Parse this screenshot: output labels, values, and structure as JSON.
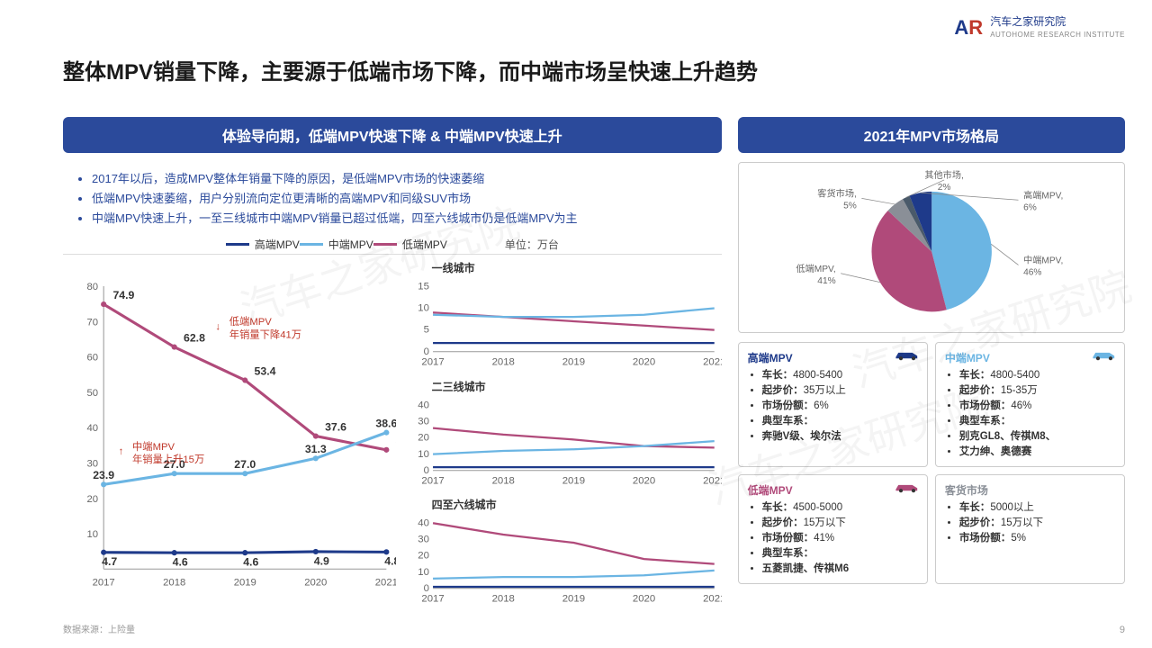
{
  "logo": {
    "mark_a": "A",
    "mark_r": "R",
    "cn": "汽车之家研究院",
    "en": "AUTOHOME RESEARCH INSTITUTE"
  },
  "main_title": "整体MPV销量下降，主要源于低端市场下降，而中端市场呈快速上升趋势",
  "left_banner": "体验导向期，低端MPV快速下降 & 中端MPV快速上升",
  "right_banner": "2021年MPV市场格局",
  "bullets": [
    "2017年以后，造成MPV整体年销量下降的原因，是低端MPV市场的快速萎缩",
    "低端MPV快速萎缩，用户分别流向定位更清晰的高端MPV和同级SUV市场",
    "中端MPV快速上升，一至三线城市中端MPV销量已超过低端，四至六线城市仍是低端MPV为主"
  ],
  "legend": [
    {
      "label": "高端MPV",
      "color": "#1e3a8a"
    },
    {
      "label": "中端MPV",
      "color": "#6bb5e3"
    },
    {
      "label": "低端MPV",
      "color": "#b04a7a"
    }
  ],
  "unit": "单位：万台",
  "main_chart": {
    "years": [
      "2017",
      "2018",
      "2019",
      "2020",
      "2021"
    ],
    "ylim": [
      0,
      80
    ],
    "ytick": 10,
    "series": {
      "high": {
        "color": "#1e3a8a",
        "values": [
          4.7,
          4.6,
          4.6,
          4.9,
          4.8
        ]
      },
      "mid": {
        "color": "#6bb5e3",
        "values": [
          23.9,
          27.0,
          27.0,
          31.3,
          38.6
        ]
      },
      "low": {
        "color": "#b04a7a",
        "values": [
          74.9,
          62.8,
          53.4,
          37.6,
          33.7
        ]
      }
    },
    "annot_low": "低端MPV\n年销量下降41万",
    "annot_mid": "中端MPV\n年销量上升15万"
  },
  "small_charts": [
    {
      "title": "一线城市",
      "ylim": [
        0,
        15
      ],
      "ytick": 5,
      "high": [
        2,
        2,
        2,
        2,
        2
      ],
      "mid": [
        8.5,
        8,
        8,
        8.5,
        10
      ],
      "low": [
        9,
        8,
        7,
        6,
        5
      ]
    },
    {
      "title": "二三线城市",
      "ylim": [
        0,
        40
      ],
      "ytick": 10,
      "high": [
        2,
        2,
        2,
        2,
        2
      ],
      "mid": [
        10,
        12,
        13,
        15,
        18
      ],
      "low": [
        26,
        22,
        19,
        15,
        14
      ]
    },
    {
      "title": "四至六线城市",
      "ylim": [
        0,
        40
      ],
      "ytick": 10,
      "high": [
        1,
        1,
        1,
        1,
        1
      ],
      "mid": [
        6,
        7,
        7,
        8,
        11
      ],
      "low": [
        40,
        33,
        28,
        18,
        15
      ]
    }
  ],
  "pie": {
    "slices": [
      {
        "label": "中端MPV,",
        "value": 46,
        "pct": "46%",
        "color": "#6bb5e3"
      },
      {
        "label": "低端MPV,",
        "value": 41,
        "pct": "41%",
        "color": "#b04a7a"
      },
      {
        "label": "客货市场,",
        "value": 5,
        "pct": "5%",
        "color": "#8a8f97"
      },
      {
        "label": "其他市场,",
        "value": 2,
        "pct": "2%",
        "color": "#4a5a6a"
      },
      {
        "label": "高端MPV,",
        "value": 6,
        "pct": "6%",
        "color": "#1e3a8a"
      }
    ]
  },
  "segments": [
    {
      "title": "高端MPV",
      "color": "#1e3a8a",
      "car": true,
      "items": [
        "车长：4800-5400",
        "起步价：35万以上",
        "市场份额：6%",
        "典型车系：",
        "奔驰V级、埃尔法"
      ]
    },
    {
      "title": "中端MPV",
      "color": "#6bb5e3",
      "car": true,
      "items": [
        "车长：4800-5400",
        "起步价：15-35万",
        "市场份额：46%",
        "典型车系：",
        "别克GL8、传祺M8、",
        "艾力绅、奥德赛"
      ]
    },
    {
      "title": "低端MPV",
      "color": "#b04a7a",
      "car": true,
      "items": [
        "车长：4500-5000",
        "起步价：15万以下",
        "市场份额：41%",
        "典型车系：",
        "五菱凯捷、传祺M6"
      ]
    },
    {
      "title": "客货市场",
      "color": "#8a8f97",
      "car": false,
      "items": [
        "车长：5000以上",
        "起步价：15万以下",
        "市场份额：5%"
      ]
    }
  ],
  "source": "数据来源：上险量",
  "pagenum": "9",
  "watermark": "汽车之家研究院"
}
